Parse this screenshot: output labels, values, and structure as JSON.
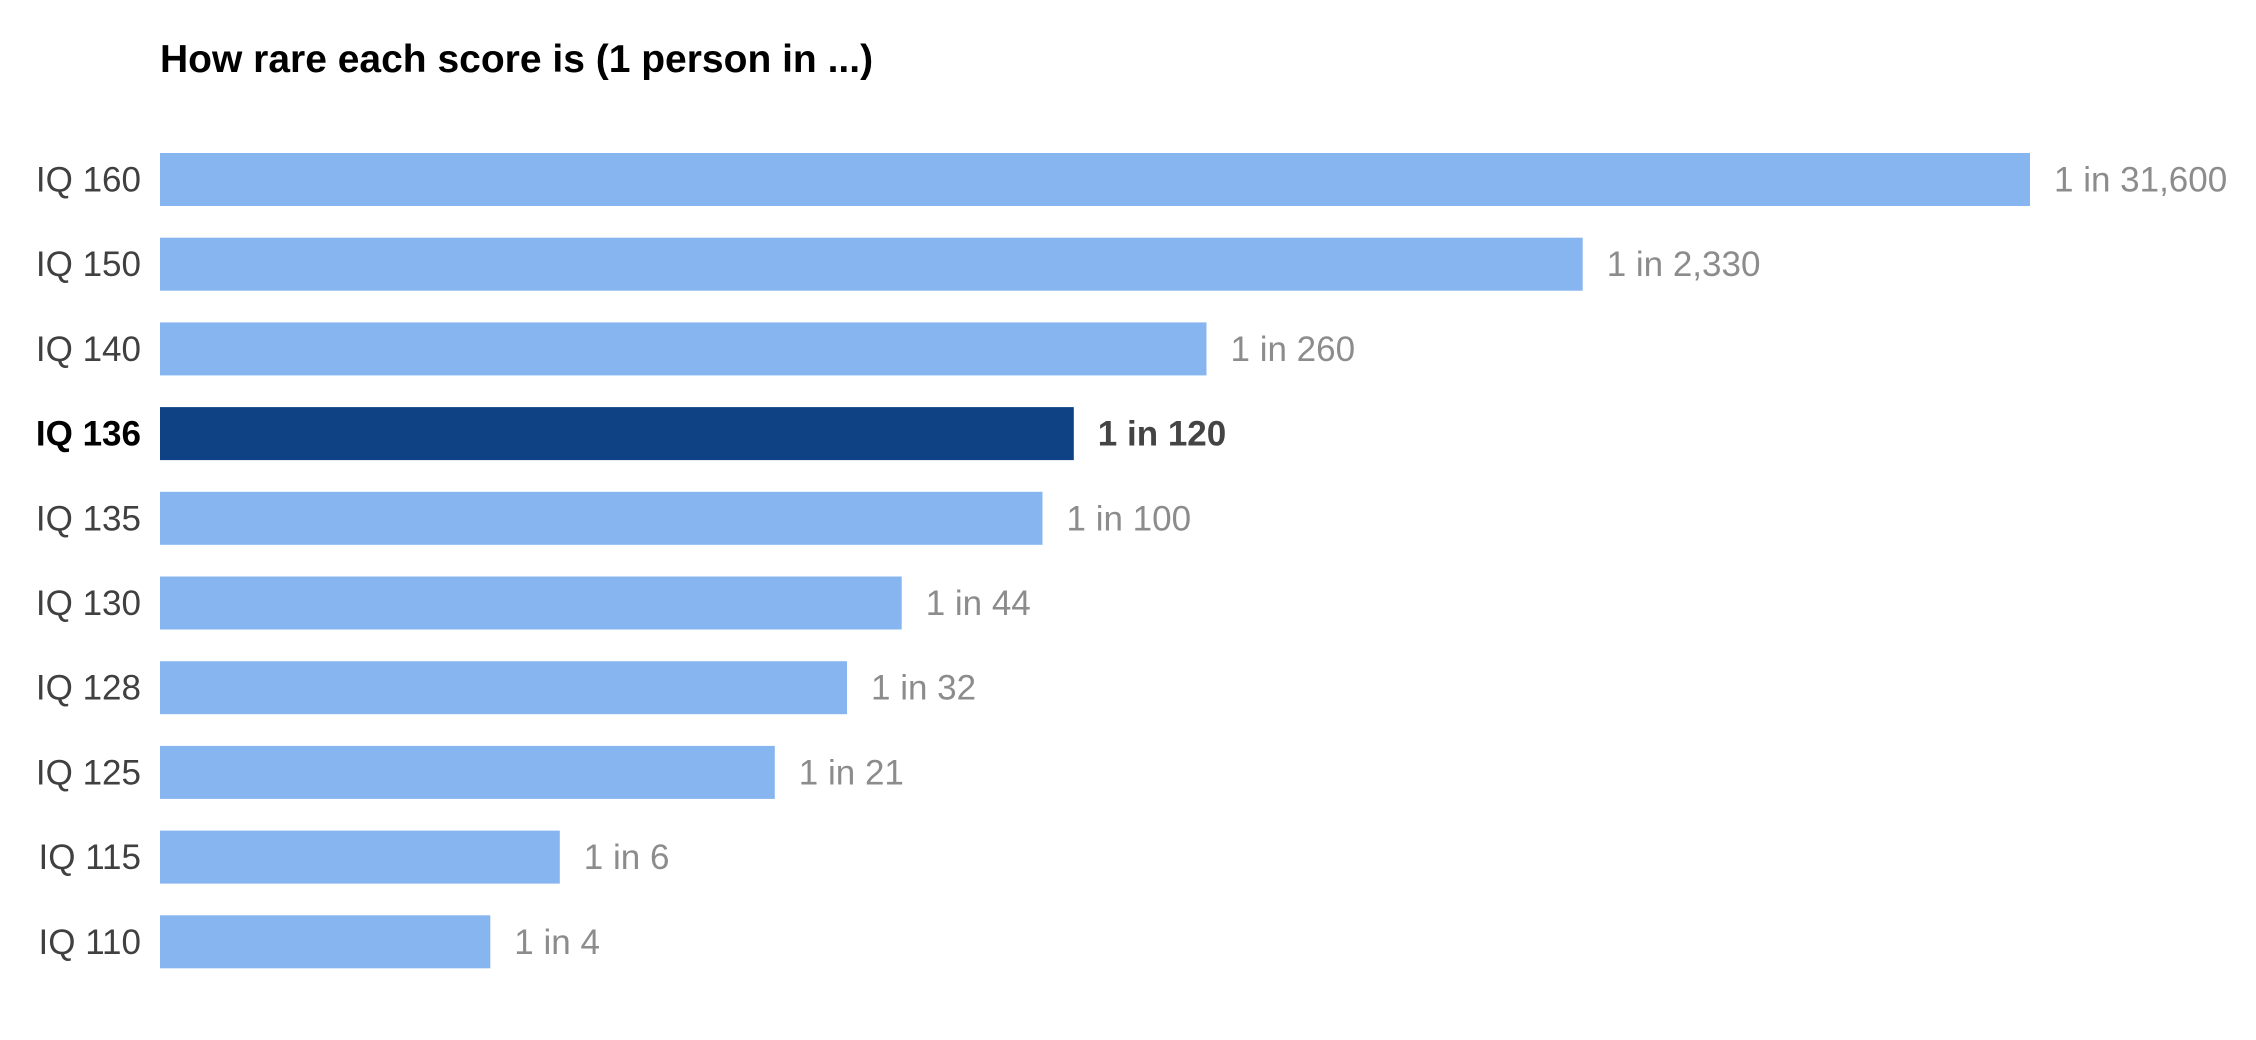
{
  "chart_data": {
    "type": "bar",
    "orientation": "horizontal",
    "title": "How rare each score is (1 person in ...)",
    "xlabel": "",
    "ylabel": "",
    "grid": false,
    "legend": "none",
    "highlight": "IQ 136",
    "categories": [
      "IQ 160",
      "IQ 150",
      "IQ 140",
      "IQ 136",
      "IQ 135",
      "IQ 130",
      "IQ 128",
      "IQ 125",
      "IQ 115",
      "IQ 110"
    ],
    "values": [
      31600,
      2330,
      260,
      120,
      100,
      44,
      32,
      21,
      6,
      4
    ],
    "value_labels": [
      "1 in 31,600",
      "1 in 2,330",
      "1 in 260",
      "1 in 120",
      "1 in 100",
      "1 in 44",
      "1 in 32",
      "1 in 21",
      "1 in 6",
      "1 in 4"
    ],
    "colors": {
      "bar": "#87b5f0",
      "highlight_bar": "#0f4185"
    }
  }
}
